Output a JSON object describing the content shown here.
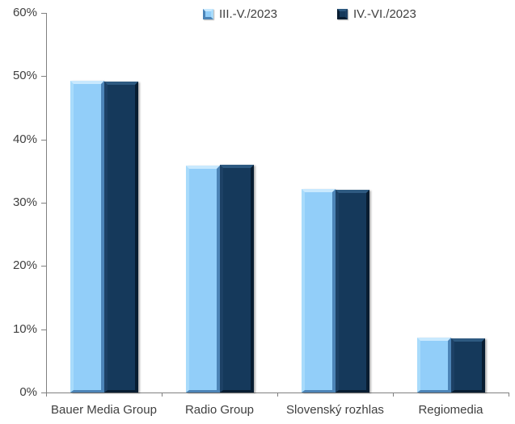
{
  "chart_data": {
    "type": "bar",
    "title": "",
    "xlabel": "",
    "ylabel": "",
    "categories": [
      "Bauer Media Group",
      "Radio Group",
      "Slovenský rozhlas",
      "Regiomedia"
    ],
    "series": [
      {
        "name": "III.-V./2023",
        "values": [
          49.3,
          35.9,
          32.2,
          8.7
        ],
        "face": "#92CEF9",
        "bevel_top": "#C9E9FE",
        "bevel_left": "#A8DBFB",
        "bevel_right": "#4C84B7",
        "bevel_bottom": "#4C84B7"
      },
      {
        "name": "IV.-VI./2023",
        "values": [
          49.1,
          36.0,
          32.1,
          8.6
        ],
        "face": "#15395B",
        "bevel_top": "#2E5A81",
        "bevel_left": "#1D4165",
        "bevel_right": "#081D31",
        "bevel_bottom": "#081D31"
      }
    ],
    "ylim": [
      0,
      60
    ],
    "ytick_step": 10,
    "ytick_labels": [
      "0%",
      "10%",
      "20%",
      "30%",
      "40%",
      "50%",
      "60%"
    ],
    "grid": false,
    "legend_position": "top-center"
  },
  "style": {
    "axis_color": "#808080",
    "text_color": "#404040",
    "background": "#ffffff"
  }
}
